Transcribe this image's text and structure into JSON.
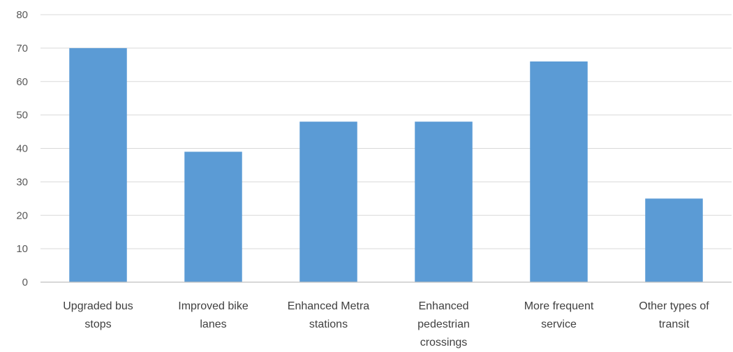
{
  "chart_data": {
    "type": "bar",
    "categories": [
      [
        "Upgraded bus",
        "stops"
      ],
      [
        "Improved bike",
        "lanes"
      ],
      [
        "Enhanced Metra",
        "stations"
      ],
      [
        "Enhanced",
        "pedestrian",
        "crossings"
      ],
      [
        "More frequent",
        "service"
      ],
      [
        "Other types of",
        "transit"
      ]
    ],
    "values": [
      70,
      39,
      48,
      48,
      66,
      25
    ],
    "title": "",
    "xlabel": "",
    "ylabel": "",
    "ylim": [
      0,
      80
    ],
    "yticks": [
      0,
      10,
      20,
      30,
      40,
      50,
      60,
      70,
      80
    ],
    "grid": true,
    "legend": "none",
    "bar_color": "#5b9bd5"
  }
}
